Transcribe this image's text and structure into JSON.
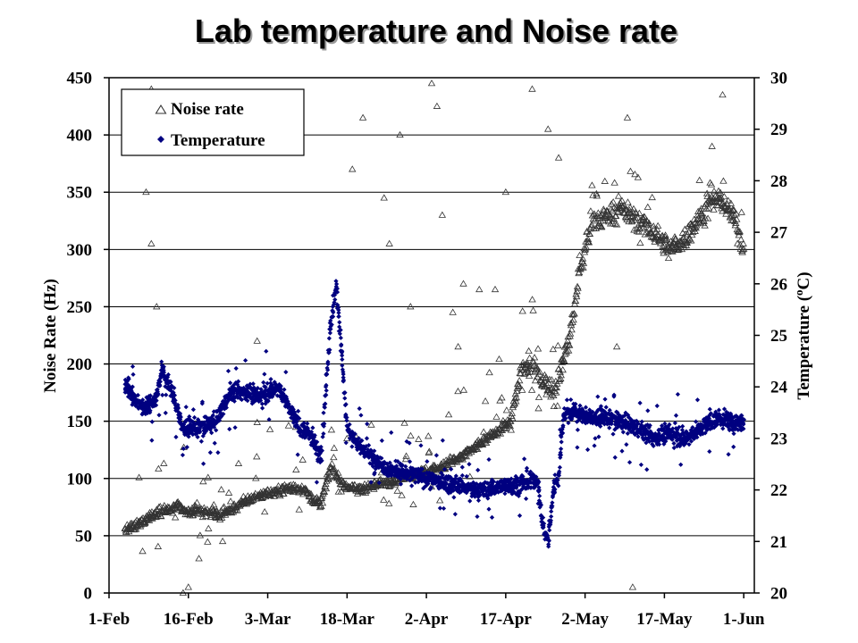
{
  "chart_data": {
    "type": "scatter",
    "title": "Lab temperature and Noise rate",
    "x_axis": {
      "type": "date",
      "range": [
        "2007-02-01",
        "2007-06-03"
      ],
      "tick_dates": [
        "2007-02-01",
        "2007-02-16",
        "2007-03-03",
        "2007-03-18",
        "2007-04-02",
        "2007-04-17",
        "2007-05-02",
        "2007-05-17",
        "2007-06-01"
      ],
      "tick_labels": [
        "1-Feb",
        "16-Feb",
        "3-Mar",
        "18-Mar",
        "2-Apr",
        "17-Apr",
        "2-May",
        "17-May",
        "1-Jun"
      ]
    },
    "y_left": {
      "label": "Noise Rate (Hz)",
      "range": [
        0,
        450
      ],
      "ticks": [
        0,
        50,
        100,
        150,
        200,
        250,
        300,
        350,
        400,
        450
      ]
    },
    "y_right": {
      "label_main": "Temperature (",
      "label_degree": "o",
      "label_unit": "C)",
      "range": [
        20,
        30
      ],
      "ticks": [
        20,
        21,
        22,
        23,
        24,
        25,
        26,
        27,
        28,
        29,
        30
      ]
    },
    "grid": "horizontal",
    "legend_position": "top-left",
    "series": [
      {
        "name": "Noise rate",
        "axis": "left",
        "marker": "open-triangle",
        "color": "#333333",
        "baseline": {
          "x": [
            "2007-02-04",
            "2007-02-06",
            "2007-02-08",
            "2007-02-10",
            "2007-02-12",
            "2007-02-14",
            "2007-02-16",
            "2007-02-18",
            "2007-02-22",
            "2007-02-26",
            "2007-03-01",
            "2007-03-04",
            "2007-03-07",
            "2007-03-10",
            "2007-03-12",
            "2007-03-13",
            "2007-03-15",
            "2007-03-17",
            "2007-03-20",
            "2007-03-24",
            "2007-03-28",
            "2007-04-01",
            "2007-04-05",
            "2007-04-09",
            "2007-04-12",
            "2007-04-15",
            "2007-04-18",
            "2007-04-20",
            "2007-04-22",
            "2007-04-24",
            "2007-04-26",
            "2007-04-29",
            "2007-05-01",
            "2007-05-03",
            "2007-05-06",
            "2007-05-09",
            "2007-05-12",
            "2007-05-15",
            "2007-05-18",
            "2007-05-21",
            "2007-05-24",
            "2007-05-27",
            "2007-05-30",
            "2007-06-01"
          ],
          "y": [
            55,
            58,
            65,
            70,
            72,
            75,
            70,
            72,
            68,
            78,
            85,
            88,
            92,
            90,
            80,
            78,
            110,
            95,
            90,
            95,
            100,
            105,
            110,
            120,
            130,
            140,
            150,
            195,
            200,
            185,
            175,
            220,
            280,
            320,
            330,
            335,
            325,
            315,
            300,
            310,
            330,
            345,
            330,
            300
          ]
        },
        "outliers": {
          "x": [
            "2007-02-08",
            "2007-02-09",
            "2007-02-09",
            "2007-02-10",
            "2007-02-15",
            "2007-02-16",
            "2007-02-18",
            "2007-03-01",
            "2007-03-19",
            "2007-03-21",
            "2007-03-25",
            "2007-03-26",
            "2007-03-28",
            "2007-03-30",
            "2007-04-03",
            "2007-04-04",
            "2007-04-05",
            "2007-04-07",
            "2007-04-08",
            "2007-04-09",
            "2007-04-12",
            "2007-04-15",
            "2007-04-17",
            "2007-04-22",
            "2007-04-25",
            "2007-04-27",
            "2007-05-08",
            "2007-05-10",
            "2007-05-11",
            "2007-05-26",
            "2007-05-28"
          ],
          "y": [
            350,
            440,
            305,
            250,
            0,
            5,
            30,
            220,
            370,
            415,
            345,
            305,
            400,
            250,
            445,
            425,
            330,
            245,
            215,
            270,
            265,
            265,
            350,
            440,
            405,
            380,
            215,
            415,
            5,
            390,
            435
          ]
        }
      },
      {
        "name": "Temperature",
        "axis": "right",
        "marker": "filled-diamond",
        "color": "#000080",
        "x": [
          "2007-02-04",
          "2007-02-06",
          "2007-02-08",
          "2007-02-10",
          "2007-02-11",
          "2007-02-12",
          "2007-02-13",
          "2007-02-14",
          "2007-02-15",
          "2007-02-16",
          "2007-02-18",
          "2007-02-21",
          "2007-02-24",
          "2007-02-27",
          "2007-03-01",
          "2007-03-03",
          "2007-03-05",
          "2007-03-07",
          "2007-03-09",
          "2007-03-11",
          "2007-03-13",
          "2007-03-15",
          "2007-03-16",
          "2007-03-18",
          "2007-03-20",
          "2007-03-23",
          "2007-03-26",
          "2007-03-30",
          "2007-04-03",
          "2007-04-07",
          "2007-04-11",
          "2007-04-14",
          "2007-04-17",
          "2007-04-20",
          "2007-04-23",
          "2007-04-24",
          "2007-04-25",
          "2007-04-26",
          "2007-04-27",
          "2007-04-28",
          "2007-04-30",
          "2007-05-03",
          "2007-05-06",
          "2007-05-09",
          "2007-05-12",
          "2007-05-15",
          "2007-05-18",
          "2007-05-21",
          "2007-05-24",
          "2007-05-27",
          "2007-05-30",
          "2007-06-01"
        ],
        "y": [
          24.1,
          23.7,
          23.6,
          23.8,
          24.3,
          24.1,
          23.9,
          23.5,
          23.2,
          23.2,
          23.2,
          23.3,
          23.9,
          23.9,
          23.8,
          23.9,
          24.0,
          23.6,
          23.2,
          23.1,
          22.6,
          25.3,
          26.0,
          23.2,
          22.9,
          22.6,
          22.4,
          22.3,
          22.2,
          22.1,
          22.0,
          22.0,
          22.1,
          22.1,
          22.2,
          21.3,
          21.0,
          22.0,
          22.3,
          23.5,
          23.5,
          23.4,
          23.4,
          23.3,
          23.2,
          23.0,
          23.1,
          23.0,
          23.2,
          23.4,
          23.3,
          23.3
        ]
      }
    ]
  }
}
